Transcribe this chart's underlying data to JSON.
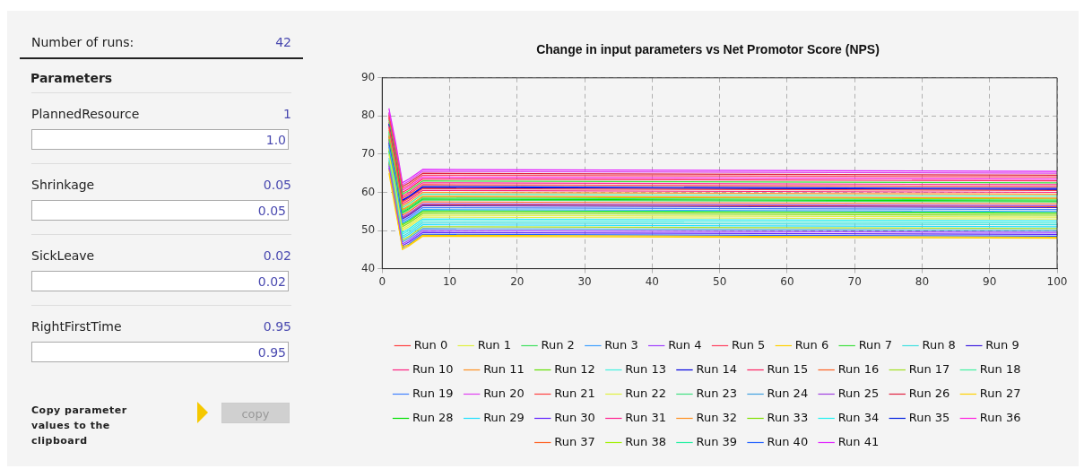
{
  "chart_data": [
    {
      "type": "other",
      "annotations": [
        "Number of runs:",
        "42",
        "Parameters",
        "PlannedResource",
        "1",
        "1.0",
        "Shrinkage",
        "0.05",
        "0.05",
        "SickLeave",
        "0.02",
        "0.02",
        "RightFirstTime",
        "0.95",
        "0.95",
        "Copy parameter values to the clipboard",
        "copy"
      ]
    },
    {
      "type": "line",
      "title": "Change in input parameters vs Net Promotor Score (NPS)",
      "x": [
        1,
        2,
        3,
        4,
        6,
        100
      ],
      "xlim": [
        0,
        100
      ],
      "xticks": [
        0,
        10,
        20,
        30,
        40,
        50,
        60,
        70,
        80,
        90,
        100
      ],
      "ylim": [
        40,
        90
      ],
      "yticks": [
        40,
        50,
        60,
        70,
        80,
        90
      ],
      "grid": true,
      "legend": "bottom",
      "marker": "none",
      "line_style": "solid",
      "series": [
        {
          "name": "Run 0",
          "color": "#ff4040",
          "values": [
            77,
            68,
            57.5,
            58.5,
            61,
            60.5
          ]
        },
        {
          "name": "Run 1",
          "color": "#e0f040",
          "values": [
            70,
            61,
            50,
            51,
            53.5,
            53
          ]
        },
        {
          "name": "Run 2",
          "color": "#40e060",
          "values": [
            74,
            65,
            54.5,
            55.5,
            58,
            57.5
          ]
        },
        {
          "name": "Run 3",
          "color": "#40a0ff",
          "values": [
            72,
            63,
            52,
            53,
            55.5,
            55
          ]
        },
        {
          "name": "Run 4",
          "color": "#a040ff",
          "values": [
            67,
            57,
            46.5,
            47.5,
            50,
            49.5
          ]
        },
        {
          "name": "Run 5",
          "color": "#ff4060",
          "values": [
            80,
            71,
            61,
            62,
            64.5,
            64
          ]
        },
        {
          "name": "Run 6",
          "color": "#ffd000",
          "values": [
            66,
            56,
            45,
            46,
            48.5,
            48
          ]
        },
        {
          "name": "Run 7",
          "color": "#40e040",
          "values": [
            79,
            70,
            59.5,
            60.5,
            63,
            62.5
          ]
        },
        {
          "name": "Run 8",
          "color": "#40e0e0",
          "values": [
            69,
            60,
            48.5,
            49.5,
            52,
            51.5
          ]
        },
        {
          "name": "Run 9",
          "color": "#4020e0",
          "values": [
            73,
            64,
            53,
            54,
            56.5,
            56
          ]
        },
        {
          "name": "Run 10",
          "color": "#ff2080",
          "values": [
            77.4,
            68.4,
            57,
            58,
            60.5,
            60
          ]
        },
        {
          "name": "Run 11",
          "color": "#ff9020",
          "values": [
            75,
            66,
            55.5,
            56.5,
            59,
            58.5
          ]
        },
        {
          "name": "Run 12",
          "color": "#60e000",
          "values": [
            71,
            62,
            51.5,
            52.5,
            55,
            54.5
          ]
        },
        {
          "name": "Run 13",
          "color": "#40f0e0",
          "values": [
            70.4,
            60.4,
            49,
            50,
            52.5,
            52
          ]
        },
        {
          "name": "Run 14",
          "color": "#0000e0",
          "values": [
            78,
            69,
            58,
            59,
            61.5,
            61
          ]
        },
        {
          "name": "Run 15",
          "color": "#ff2060",
          "values": [
            79.4,
            70.4,
            60,
            61,
            63.5,
            63
          ]
        },
        {
          "name": "Run 16",
          "color": "#ff6020",
          "values": [
            74.4,
            65.4,
            54,
            55,
            57.5,
            57
          ]
        },
        {
          "name": "Run 17",
          "color": "#a0e020",
          "values": [
            68,
            58,
            47.5,
            48.5,
            51,
            50.5
          ]
        },
        {
          "name": "Run 18",
          "color": "#40f0a0",
          "values": [
            76,
            67,
            56,
            57,
            59.5,
            59
          ]
        },
        {
          "name": "Run 19",
          "color": "#4080ff",
          "values": [
            72.4,
            63,
            52.5,
            53.5,
            56,
            55.5
          ]
        },
        {
          "name": "Run 20",
          "color": "#e040f0",
          "values": [
            81,
            72,
            62,
            63,
            65.5,
            65
          ]
        },
        {
          "name": "Run 21",
          "color": "#ff4040",
          "values": [
            78.4,
            69.4,
            58.5,
            59.5,
            62,
            61.5
          ]
        },
        {
          "name": "Run 22",
          "color": "#e0f040",
          "values": [
            71.4,
            62.4,
            50.5,
            51.5,
            54,
            53.5
          ]
        },
        {
          "name": "Run 23",
          "color": "#40e080",
          "values": [
            75.4,
            66.8,
            55,
            56,
            58.5,
            58
          ]
        },
        {
          "name": "Run 24",
          "color": "#40a0e0",
          "values": [
            67.4,
            57.4,
            47,
            48,
            50.5,
            50
          ]
        },
        {
          "name": "Run 25",
          "color": "#a040e0",
          "values": [
            73.4,
            64.8,
            53.5,
            54.5,
            57,
            56.5
          ]
        },
        {
          "name": "Run 26",
          "color": "#e02040",
          "values": [
            80.4,
            71.4,
            61.5,
            62.5,
            65,
            64.5
          ]
        },
        {
          "name": "Run 27",
          "color": "#ffd000",
          "values": [
            65,
            55,
            45.75,
            46.25,
            48.75,
            48.25
          ]
        },
        {
          "name": "Run 28",
          "color": "#00e000",
          "values": [
            74.8,
            65.8,
            54.75,
            55.75,
            58.25,
            57.75
          ]
        },
        {
          "name": "Run 29",
          "color": "#20e0ff",
          "values": [
            68.4,
            59,
            48,
            49,
            51.5,
            51
          ]
        },
        {
          "name": "Run 30",
          "color": "#6020ff",
          "values": [
            66.4,
            56.4,
            46,
            47,
            49.5,
            49
          ]
        },
        {
          "name": "Run 31",
          "color": "#ff2090",
          "values": [
            79.8,
            70.8,
            59,
            60,
            62.5,
            62
          ]
        },
        {
          "name": "Run 32",
          "color": "#ff9020",
          "values": [
            76.4,
            67.4,
            56.5,
            57.5,
            60,
            59.5
          ]
        },
        {
          "name": "Run 33",
          "color": "#80e000",
          "values": [
            71.8,
            62.8,
            51,
            52,
            54.5,
            54
          ]
        },
        {
          "name": "Run 34",
          "color": "#20f0f0",
          "values": [
            70.8,
            61.4,
            49.5,
            50.5,
            53,
            52.5
          ]
        },
        {
          "name": "Run 35",
          "color": "#0020e0",
          "values": [
            77.8,
            68.8,
            57.75,
            58.75,
            61.25,
            60.75
          ]
        },
        {
          "name": "Run 36",
          "color": "#ff20e0",
          "values": [
            80.8,
            71.8,
            60.5,
            61.5,
            64,
            63.5
          ]
        },
        {
          "name": "Run 37",
          "color": "#ff6020",
          "values": [
            73.8,
            64.4,
            53.25,
            54.25,
            56.75,
            56.25
          ]
        },
        {
          "name": "Run 38",
          "color": "#a0f000",
          "values": [
            75.8,
            66.4,
            55.25,
            56.25,
            58.75,
            58.25
          ]
        },
        {
          "name": "Run 39",
          "color": "#20f0a0",
          "values": [
            72.8,
            63.4,
            51.75,
            52.75,
            55.25,
            54.75
          ]
        },
        {
          "name": "Run 40",
          "color": "#2060ff",
          "values": [
            67.8,
            57.8,
            45.5,
            46.5,
            49,
            48.5
          ]
        },
        {
          "name": "Run 41",
          "color": "#e020ff",
          "values": [
            82,
            73,
            62.5,
            63.5,
            66,
            65.5
          ]
        }
      ]
    }
  ]
}
